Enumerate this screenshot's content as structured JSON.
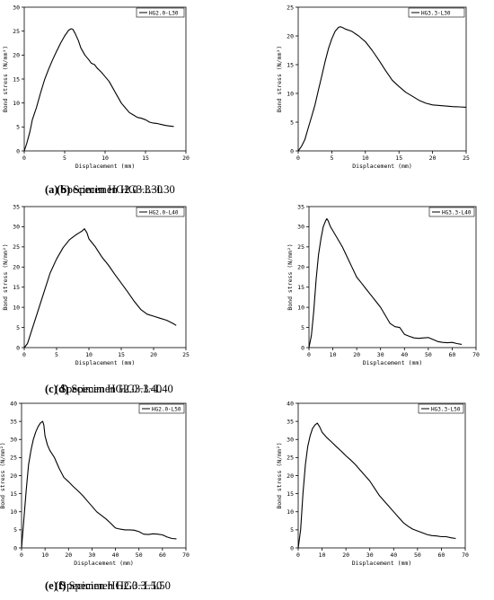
{
  "chart_data": [
    {
      "type": "line",
      "xlabel": "Displacement (mm)",
      "ylabel": "Bond stress (N/mm²)",
      "xlim": [
        0,
        20
      ],
      "ylim": [
        0,
        30
      ],
      "xticks": [
        "0",
        "5",
        "10",
        "15",
        "20"
      ],
      "yticks": [
        "0",
        "5",
        "10",
        "15",
        "20",
        "25",
        "30"
      ],
      "legend_position": "top-right",
      "caption_letter": "(a)",
      "caption_text": " Specimen HG2.0−L30",
      "series": [
        {
          "name": "HG2.0-L30",
          "x": [
            0,
            0.3,
            0.7,
            1.0,
            1.5,
            2.0,
            2.5,
            3.0,
            3.5,
            4.0,
            4.5,
            5.0,
            5.5,
            5.8,
            6.0,
            6.3,
            6.7,
            7.0,
            7.5,
            8.0,
            8.3,
            8.7,
            9.0,
            9.5,
            10.0,
            10.5,
            11.0,
            11.5,
            12.0,
            12.5,
            13.0,
            13.5,
            14.0,
            14.5,
            15.0,
            15.5,
            16.0,
            16.5,
            17.0,
            17.5,
            18.0,
            18.5
          ],
          "y": [
            0,
            1.5,
            4.0,
            6.5,
            9.0,
            12.0,
            14.8,
            17.0,
            19.0,
            20.8,
            22.5,
            24.0,
            25.2,
            25.5,
            25.4,
            24.5,
            23.0,
            21.5,
            20.0,
            19.0,
            18.3,
            18.0,
            17.3,
            16.5,
            15.5,
            14.5,
            13.0,
            11.5,
            10.0,
            9.0,
            8.0,
            7.5,
            7.0,
            6.8,
            6.5,
            6.0,
            5.8,
            5.7,
            5.5,
            5.3,
            5.2,
            5.1
          ]
        }
      ]
    },
    {
      "type": "line",
      "xlabel": "Displacement (mm)",
      "ylabel": "Bond stress (N/mm²)",
      "xlim": [
        0,
        25
      ],
      "ylim": [
        0,
        25
      ],
      "xticks": [
        "0",
        "5",
        "10",
        "15",
        "20",
        "25"
      ],
      "yticks": [
        "0",
        "5",
        "10",
        "15",
        "20",
        "25"
      ],
      "legend_position": "top-right",
      "caption_letter": "(b)",
      "caption_text": " Specimen HG3.3−L30",
      "series": [
        {
          "name": "HG3.3-L30",
          "x": [
            0,
            0.5,
            1.0,
            1.5,
            2.0,
            2.5,
            3.0,
            3.5,
            4.0,
            4.5,
            5.0,
            5.5,
            6.0,
            6.3,
            6.7,
            7.0,
            8.0,
            9.0,
            10.0,
            11.0,
            12.0,
            13.0,
            14.0,
            15.0,
            16.0,
            17.0,
            18.0,
            19.0,
            20.0,
            21.0,
            22.0,
            23.0,
            24.0,
            25.0
          ],
          "y": [
            0,
            0.8,
            2.0,
            4.0,
            6.0,
            8.0,
            10.5,
            13.0,
            15.5,
            17.8,
            19.5,
            20.8,
            21.5,
            21.6,
            21.4,
            21.2,
            20.8,
            20.0,
            19.0,
            17.5,
            15.8,
            14.0,
            12.3,
            11.2,
            10.2,
            9.5,
            8.8,
            8.3,
            8.0,
            7.9,
            7.8,
            7.7,
            7.65,
            7.6
          ]
        }
      ]
    },
    {
      "type": "line",
      "xlabel": "Displacement (mm)",
      "ylabel": "Bond stress (N/mm²)",
      "xlim": [
        0,
        25
      ],
      "ylim": [
        0,
        35
      ],
      "xticks": [
        "0",
        "5",
        "10",
        "15",
        "20",
        "25"
      ],
      "yticks": [
        "0",
        "5",
        "10",
        "15",
        "20",
        "25",
        "30",
        "35"
      ],
      "legend_position": "top-right",
      "caption_letter": "(c)",
      "caption_text": " Specimen HG2.0−L40",
      "series": [
        {
          "name": "HG2.0-L40",
          "x": [
            0,
            0.5,
            1.0,
            2.0,
            3.0,
            4.0,
            5.0,
            6.0,
            7.0,
            8.0,
            8.5,
            9.0,
            9.3,
            9.7,
            10.0,
            10.5,
            11.0,
            12.0,
            13.0,
            14.0,
            15.0,
            16.0,
            17.0,
            18.0,
            19.0,
            20.0,
            21.0,
            22.0,
            23.0,
            23.5
          ],
          "y": [
            0,
            1.0,
            3.5,
            8.5,
            13.5,
            18.5,
            22.0,
            24.8,
            26.8,
            28.0,
            28.5,
            29.0,
            29.5,
            28.5,
            27.0,
            26.0,
            25.0,
            22.5,
            20.5,
            18.2,
            16.0,
            13.8,
            11.5,
            9.5,
            8.3,
            7.8,
            7.3,
            6.8,
            6.0,
            5.5
          ]
        }
      ]
    },
    {
      "type": "line",
      "xlabel": "Displacement (mm)",
      "ylabel": "Bond stress (N/mm²)",
      "xlim": [
        0,
        70
      ],
      "ylim": [
        0,
        35
      ],
      "xticks": [
        "0",
        "10",
        "20",
        "30",
        "40",
        "50",
        "60",
        "70"
      ],
      "yticks": [
        "0",
        "5",
        "10",
        "15",
        "20",
        "25",
        "30",
        "35"
      ],
      "legend_position": "top-right",
      "caption_letter": "(d)",
      "caption_text": " Specimen HG3.3−L40",
      "series": [
        {
          "name": "HG3.3-L40",
          "x": [
            0,
            1,
            2,
            3,
            4,
            5,
            6,
            7,
            7.5,
            8,
            9,
            10,
            12,
            14,
            16,
            18,
            20,
            22,
            24,
            26,
            28,
            30,
            32,
            34,
            36,
            38,
            40,
            42,
            44,
            46,
            48,
            50,
            52,
            54,
            56,
            58,
            60,
            62,
            64
          ],
          "y": [
            0,
            3,
            9,
            17,
            23,
            27,
            30,
            31.5,
            32,
            31.5,
            30,
            29,
            27,
            25,
            22.5,
            20,
            17.5,
            16,
            14.5,
            13,
            11.5,
            10,
            8,
            6,
            5.2,
            5,
            3.3,
            2.8,
            2.4,
            2.3,
            2.4,
            2.5,
            2.0,
            1.5,
            1.3,
            1.2,
            1.3,
            1.0,
            0.8
          ]
        }
      ]
    },
    {
      "type": "line",
      "xlabel": "Displacement (mm)",
      "ylabel": "Bond stress (N/mm²)",
      "xlim": [
        0,
        70
      ],
      "ylim": [
        0,
        40
      ],
      "xticks": [
        "0",
        "10",
        "20",
        "30",
        "40",
        "50",
        "60",
        "70"
      ],
      "yticks": [
        "0",
        "5",
        "10",
        "15",
        "20",
        "25",
        "30",
        "35",
        "40"
      ],
      "legend_position": "top-right",
      "caption_letter": "(e)",
      "caption_text": " Specimen HG2.0−L50",
      "series": [
        {
          "name": "HG2.0-L50",
          "x": [
            0,
            1,
            2,
            3,
            4,
            5,
            6,
            7,
            8,
            9,
            9.5,
            10,
            11,
            12,
            14,
            16,
            18,
            20,
            22,
            24,
            26,
            28,
            30,
            32,
            34,
            36,
            38,
            40,
            42,
            44,
            46,
            48,
            50,
            52,
            54,
            56,
            58,
            60,
            62,
            64,
            66
          ],
          "y": [
            0,
            8,
            16,
            23,
            27,
            30,
            32,
            33.5,
            34.5,
            35,
            34,
            31,
            28.5,
            27,
            25,
            22,
            19.5,
            18.3,
            17,
            15.8,
            14.5,
            13,
            11.5,
            10,
            9,
            8,
            6.8,
            5.5,
            5.2,
            5.0,
            5.0,
            4.9,
            4.5,
            3.8,
            3.7,
            3.9,
            3.8,
            3.6,
            3.0,
            2.6,
            2.5
          ]
        }
      ]
    },
    {
      "type": "line",
      "xlabel": "Displacement (mm)",
      "ylabel": "Bond stress (N/mm²)",
      "xlim": [
        0,
        70
      ],
      "ylim": [
        0,
        40
      ],
      "xticks": [
        "0",
        "10",
        "20",
        "30",
        "40",
        "50",
        "60",
        "70"
      ],
      "yticks": [
        "0",
        "5",
        "10",
        "15",
        "20",
        "25",
        "30",
        "35",
        "40"
      ],
      "legend_position": "top-right",
      "caption_letter": "(f)",
      "caption_text": " Specimen HG3.3−L50",
      "series": [
        {
          "name": "HG3.3-L50",
          "x": [
            0,
            1,
            2,
            3,
            4,
            5,
            6,
            7,
            8,
            9,
            10,
            12,
            14,
            16,
            18,
            20,
            22,
            24,
            26,
            28,
            30,
            32,
            34,
            36,
            38,
            40,
            42,
            44,
            46,
            48,
            50,
            52,
            54,
            56,
            58,
            60,
            62,
            64,
            66
          ],
          "y": [
            0,
            5,
            15,
            23,
            28,
            31,
            33,
            34,
            34.5,
            33.5,
            32,
            30.5,
            29.3,
            28,
            26.8,
            25.5,
            24.3,
            23,
            21.5,
            20,
            18.5,
            16.5,
            14.5,
            13,
            11.5,
            10,
            8.5,
            7,
            6,
            5.2,
            4.7,
            4.2,
            3.7,
            3.4,
            3.3,
            3.1,
            3.1,
            2.8,
            2.6
          ]
        }
      ]
    }
  ]
}
